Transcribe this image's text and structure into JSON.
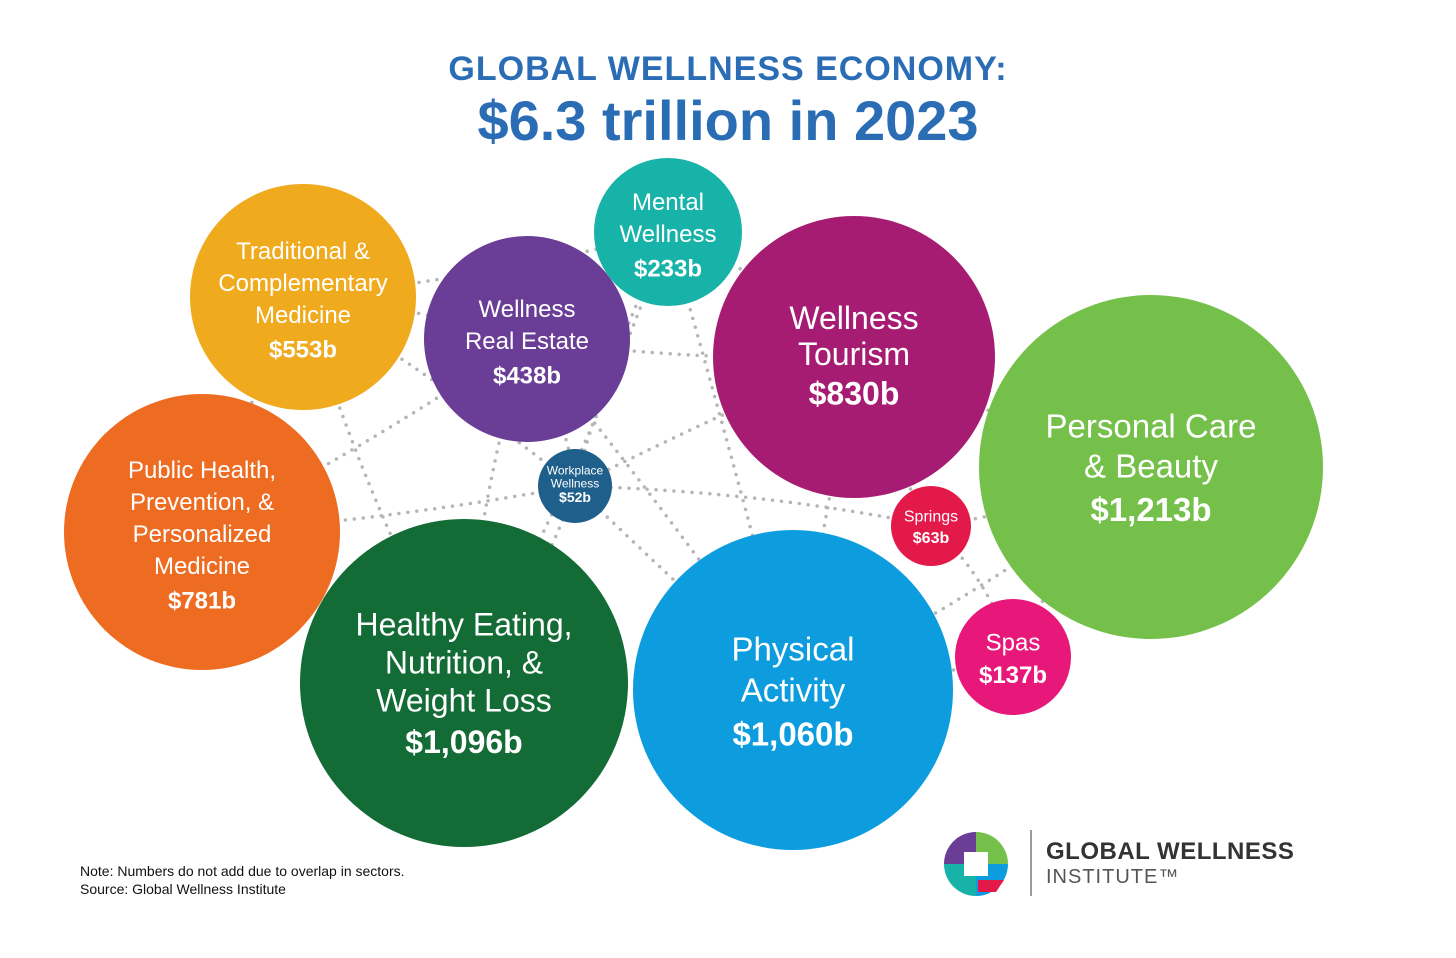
{
  "header": {
    "line1": "GLOBAL WELLNESS ECONOMY:",
    "line2": "$6.3 trillion in 2023"
  },
  "chart_data": {
    "type": "bubble",
    "title": "GLOBAL WELLNESS ECONOMY: $6.3 trillion in 2023",
    "unit": "billion USD",
    "series": [
      {
        "name": "Traditional & Complementary Medicine",
        "label_lines": [
          "Traditional &",
          "Complementary",
          "Medicine"
        ],
        "value": 553,
        "value_label": "$553b",
        "color": "#f0aa1d"
      },
      {
        "name": "Wellness Real Estate",
        "label_lines": [
          "Wellness",
          "Real Estate"
        ],
        "value": 438,
        "value_label": "$438b",
        "color": "#6a3d96"
      },
      {
        "name": "Mental Wellness",
        "label_lines": [
          "Mental",
          "Wellness"
        ],
        "value": 233,
        "value_label": "$233b",
        "color": "#17b3a8"
      },
      {
        "name": "Wellness Tourism",
        "label_lines": [
          "Wellness",
          "Tourism"
        ],
        "value": 830,
        "value_label": "$830b",
        "color": "#a61c72"
      },
      {
        "name": "Personal Care & Beauty",
        "label_lines": [
          "Personal Care",
          "& Beauty"
        ],
        "value": 1213,
        "value_label": "$1,213b",
        "color": "#75c04a"
      },
      {
        "name": "Public Health, Prevention, & Personalized Medicine",
        "label_lines": [
          "Public Health,",
          "Prevention, &",
          "Personalized",
          "Medicine"
        ],
        "value": 781,
        "value_label": "$781b",
        "color": "#ee6b22"
      },
      {
        "name": "Workplace Wellness",
        "label_lines": [
          "Workplace",
          "Wellness"
        ],
        "value": 52,
        "value_label": "$52b",
        "color": "#1f5f8b"
      },
      {
        "name": "Springs",
        "label_lines": [
          "Springs"
        ],
        "value": 63,
        "value_label": "$63b",
        "color": "#e3194a"
      },
      {
        "name": "Healthy Eating, Nutrition, & Weight Loss",
        "label_lines": [
          "Healthy Eating,",
          "Nutrition, &",
          "Weight Loss"
        ],
        "value": 1096,
        "value_label": "$1,096b",
        "color": "#136b36"
      },
      {
        "name": "Physical Activity",
        "label_lines": [
          "Physical",
          "Activity"
        ],
        "value": 1060,
        "value_label": "$1,060b",
        "color": "#0d9ddf"
      },
      {
        "name": "Spas",
        "label_lines": [
          "Spas"
        ],
        "value": 137,
        "value_label": "$137b",
        "color": "#e8187a"
      }
    ],
    "connector_style": "dotted gray network"
  },
  "footer": {
    "note": "Note: Numbers do not add due to overlap in sectors.",
    "source": "Source: Global Wellness Institute"
  },
  "logo": {
    "name": "GLOBAL WELLNESS",
    "sub": "INSTITUTE™",
    "colors": [
      "#6a3d96",
      "#75c04a",
      "#0d9ddf",
      "#e3194a",
      "#17b3a8"
    ]
  }
}
